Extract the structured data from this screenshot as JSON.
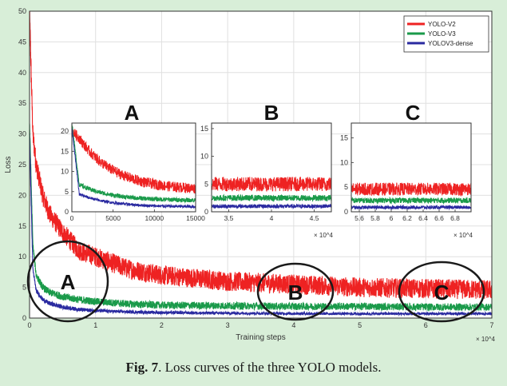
{
  "figure": {
    "caption_prefix": "Fig. 7",
    "caption_text": ". Loss curves of the three YOLO models."
  },
  "colors": {
    "yolo_v2": "#ee2222",
    "yolo_v3": "#1a9a4a",
    "yolov3_dense": "#2a2aa0",
    "background": "#d8eed8"
  },
  "chart_data": {
    "type": "line",
    "title": "",
    "xlabel": "Training steps",
    "ylabel": "Loss",
    "x_exponent": "× 10^4",
    "xlim": [
      0,
      70000
    ],
    "ylim": [
      0,
      50
    ],
    "xticks": [
      0,
      1,
      2,
      3,
      4,
      5,
      6,
      7
    ],
    "yticks": [
      0,
      5,
      10,
      15,
      20,
      25,
      30,
      35,
      40,
      45,
      50
    ],
    "grid": true,
    "legend_position": "top-right",
    "series": [
      {
        "name": "YOLO-V2",
        "x": [
          0,
          500,
          1000,
          2000,
          3000,
          5000,
          7500,
          10000,
          15000,
          20000,
          30000,
          40000,
          50000,
          60000,
          70000
        ],
        "y": [
          50,
          30,
          25,
          20,
          17,
          14,
          11,
          10,
          8,
          7,
          6,
          5.5,
          5,
          4.8,
          4.6
        ]
      },
      {
        "name": "YOLO-V3",
        "x": [
          0,
          500,
          1000,
          2000,
          3000,
          5000,
          7500,
          10000,
          15000,
          20000,
          30000,
          40000,
          50000,
          60000,
          70000
        ],
        "y": [
          32,
          12,
          7,
          5,
          4.2,
          3.5,
          3,
          2.7,
          2.3,
          2.1,
          2,
          1.9,
          1.9,
          1.8,
          1.8
        ]
      },
      {
        "name": "YOLOV3-dense",
        "x": [
          0,
          500,
          1000,
          2000,
          3000,
          5000,
          7500,
          10000,
          15000,
          20000,
          30000,
          40000,
          50000,
          60000,
          70000
        ],
        "y": [
          30,
          8,
          4.5,
          3,
          2.4,
          1.8,
          1.4,
          1.2,
          1,
          0.9,
          0.8,
          0.75,
          0.7,
          0.7,
          0.7
        ]
      }
    ],
    "annotations": [
      "A",
      "B",
      "C"
    ],
    "insets": [
      {
        "label": "A",
        "xlim": [
          0,
          15000
        ],
        "ylim": [
          0,
          22
        ],
        "xticks": [
          "0",
          "5000",
          "10000",
          "15000"
        ],
        "yticks": [
          "0",
          "5",
          "10",
          "15",
          "20"
        ],
        "x_exponent": ""
      },
      {
        "label": "B",
        "xlim": [
          33000,
          47000
        ],
        "ylim": [
          0,
          16
        ],
        "xticks": [
          "3.5",
          "4",
          "4.5"
        ],
        "yticks": [
          "0",
          "5",
          "10",
          "15"
        ],
        "x_exponent": "× 10^4"
      },
      {
        "label": "C",
        "xlim": [
          55000,
          70000
        ],
        "ylim": [
          0,
          18
        ],
        "xticks": [
          "5.6",
          "5.8",
          "6",
          "6.2",
          "6.4",
          "6.6",
          "6.8"
        ],
        "yticks": [
          "0",
          "5",
          "10",
          "15"
        ],
        "x_exponent": "× 10^4"
      }
    ]
  }
}
